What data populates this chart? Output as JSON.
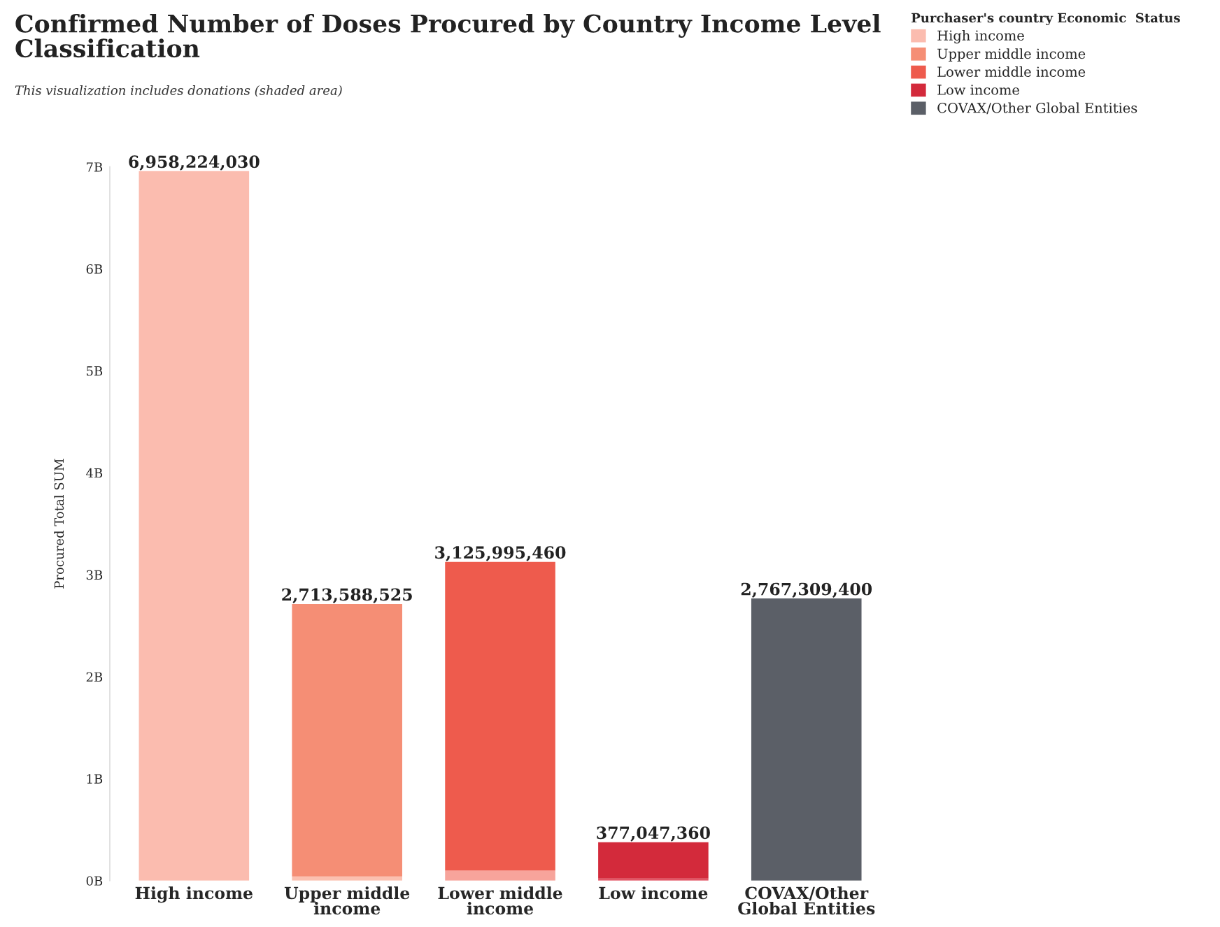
{
  "chart_data": {
    "type": "bar",
    "title": "Confirmed Number of Doses Procured by Country Income Level Classification",
    "subtitle": "This visualization includes donations (shaded area)",
    "ylabel": "Procured Total SUM",
    "legend_title": "Purchaser's country Economic  Status",
    "categories": [
      "High income",
      "Upper middle income",
      "Lower middle income",
      "Low income",
      "COVAX/Other Global Entities"
    ],
    "stacked": true,
    "series": [
      {
        "colors": [
          "#fdd6cd",
          "#fbc0b0",
          "#f7a49b",
          "#e35565",
          "#8a8d93"
        ],
        "values": [
          0,
          40000000,
          100000000,
          20000000,
          0
        ]
      },
      {
        "name": "High income",
        "color": "#fbbcaf",
        "values": [
          6958224030,
          null,
          null,
          null,
          null
        ]
      },
      {
        "name": "Upper middle income",
        "color": "#f58e75",
        "values": [
          null,
          2673588525,
          null,
          null,
          null
        ]
      },
      {
        "name": "Lower middle income",
        "color": "#ee5b4d",
        "values": [
          null,
          null,
          3025995460,
          null,
          null
        ]
      },
      {
        "name": "Low income",
        "color": "#d32a3b",
        "values": [
          null,
          null,
          null,
          357047360,
          null
        ]
      },
      {
        "name": "COVAX/Other Global Entities",
        "color": "#5b5f67",
        "values": [
          null,
          null,
          null,
          null,
          2767309400
        ]
      }
    ],
    "totals": [
      "6,958,224,030",
      "2,713,588,525",
      "3,125,995,460",
      "377,047,360",
      "2,767,309,400"
    ],
    "ylim": [
      0,
      7000000000
    ],
    "yticks": [
      {
        "value": 0,
        "label": "0B"
      },
      {
        "value": 1000000000,
        "label": "1B"
      },
      {
        "value": 2000000000,
        "label": "2B"
      },
      {
        "value": 3000000000,
        "label": "3B"
      },
      {
        "value": 4000000000,
        "label": "4B"
      },
      {
        "value": 5000000000,
        "label": "5B"
      },
      {
        "value": 6000000000,
        "label": "6B"
      },
      {
        "value": 7000000000,
        "label": "7B"
      }
    ],
    "grid": false,
    "legend": "top right"
  }
}
